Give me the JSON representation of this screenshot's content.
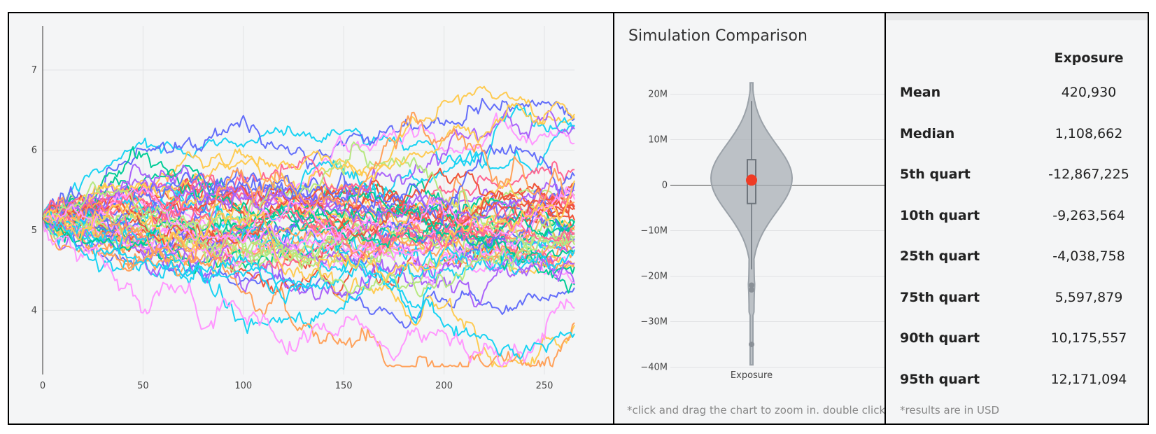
{
  "chart_data": [
    {
      "type": "line",
      "title": "",
      "xlabel": "",
      "ylabel": "",
      "x_ticks": [
        0,
        50,
        100,
        150,
        200,
        250
      ],
      "y_ticks": [
        4,
        5,
        6,
        7
      ],
      "xlim": [
        0,
        265
      ],
      "ylim": [
        3.2,
        7.55
      ],
      "n_series": 60,
      "start_value": 5.15,
      "n_steps": 265,
      "series_colors": [
        "#636efa",
        "#ef553b",
        "#00cc96",
        "#ab63fa",
        "#ffa15a",
        "#19d3f3",
        "#ff6692",
        "#b6e880",
        "#ff97ff",
        "#fecb52"
      ]
    },
    {
      "type": "violin",
      "title": "Simulation Comparison",
      "category": "Exposure",
      "y_ticks": [
        20000000,
        10000000,
        0,
        -10000000,
        -20000000,
        -30000000,
        -40000000
      ],
      "y_tick_labels": [
        "20M",
        "10M",
        "0",
        "−10M",
        "−20M",
        "−30M",
        "−40M"
      ],
      "ylim": [
        -43000000,
        27000000
      ],
      "max": 22500000,
      "min": -39500000,
      "upper_fence": 18500000,
      "lower_fence": -18500000,
      "q1": -4038758,
      "q3": 5597879,
      "median": 1108662,
      "mean": 420930,
      "outliers": [
        -22000000,
        -23000000,
        -35000000
      ],
      "marker_color": "#ef3b24",
      "fill_color": "#a9afb6"
    }
  ],
  "mid": {
    "title": "Simulation Comparison",
    "note": "*click and drag the chart to zoom in. double click to reset zoom"
  },
  "stats": {
    "header": "Exposure",
    "rows": [
      {
        "label": "Mean",
        "value": "420,930"
      },
      {
        "label": "Median",
        "value": "1,108,662"
      },
      {
        "label": "5th quart",
        "value": "-12,867,225"
      },
      {
        "label": "10th quart",
        "value": "-9,263,564"
      },
      {
        "label": "25th quart",
        "value": "-4,038,758"
      },
      {
        "label": "75th quart",
        "value": "5,597,879"
      },
      {
        "label": "90th quart",
        "value": "10,175,557"
      },
      {
        "label": "95th quart",
        "value": "12,171,094"
      }
    ],
    "note": "*results are in USD"
  }
}
